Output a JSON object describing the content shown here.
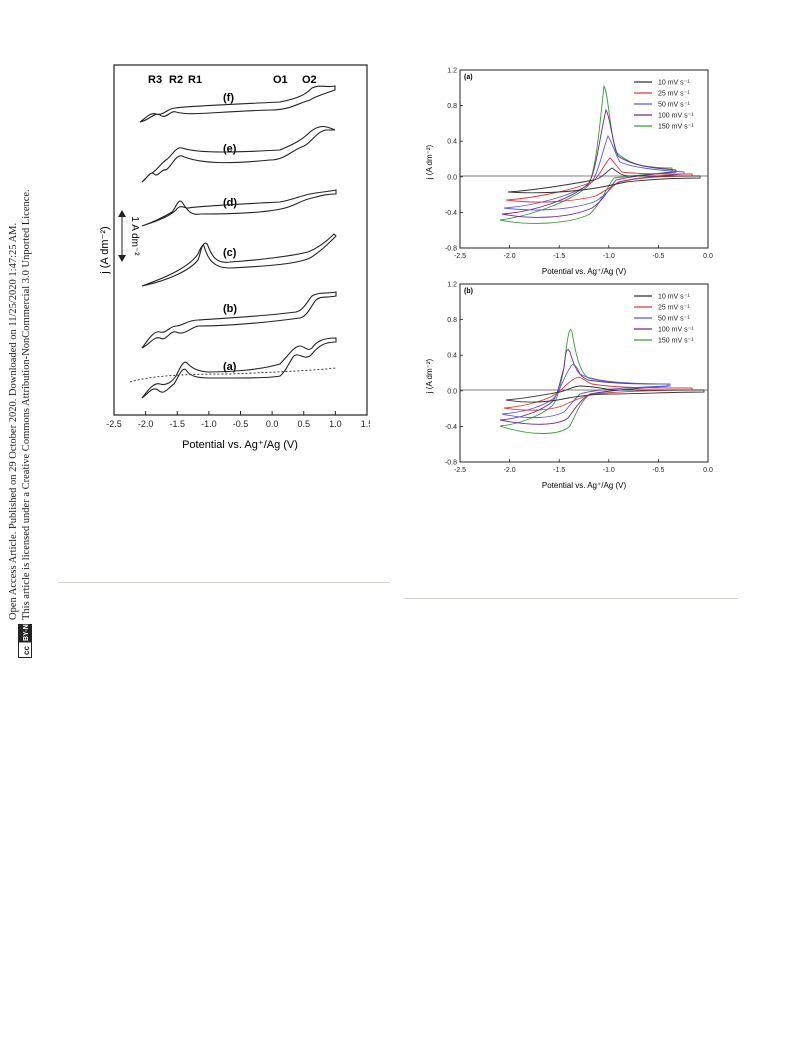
{
  "margin": {
    "line1": "Open Access Article. Published on 29 October 2020. Downloaded on 11/25/2020 1:47:25 AM.",
    "line2": "This article is licensed under a Creative Commons Attribution-NonCommercial 3.0 Unported Licence.",
    "badge_cc": "cc",
    "badge_type": "BY-NC"
  },
  "chart_data": [
    {
      "type": "line",
      "panel": "left",
      "xlabel": "Potential vs. Ag⁺/Ag (V)",
      "ylabel": "j (A dm⁻²)",
      "xlim": [
        -2.5,
        1.5
      ],
      "x_ticks": [
        "-2.5",
        "-2.0",
        "-1.5",
        "-1.0",
        "-0.5",
        "0.0",
        "0.5",
        "1.0",
        "1.5"
      ],
      "peak_labels": [
        "R3",
        "R2",
        "R1",
        "O1",
        "O2"
      ],
      "scale_bar": "1 A dm⁻²",
      "curve_labels": [
        "(f)",
        "(e)",
        "(d)",
        "(c)",
        "(b)",
        "(a)"
      ],
      "grid": false
    },
    {
      "type": "line",
      "panel": "(a)",
      "xlabel": "Potential vs. Ag⁺/Ag (V)",
      "ylabel": "j (A dm⁻²)",
      "xlim": [
        -2.5,
        0.0
      ],
      "ylim": [
        -0.8,
        1.2
      ],
      "x_ticks": [
        "-2.5",
        "-2.0",
        "-1.5",
        "-1.0",
        "-0.5",
        "0.0"
      ],
      "y_ticks": [
        "-0.8",
        "-0.4",
        "0.0",
        "0.4",
        "0.8",
        "1.2"
      ],
      "legend": "top-right",
      "series": [
        {
          "name": "10 mV s⁻¹",
          "color": "#333333"
        },
        {
          "name": "25 mV s⁻¹",
          "color": "#d43a3a"
        },
        {
          "name": "50 mV s⁻¹",
          "color": "#5a5adc"
        },
        {
          "name": "100 mV s⁻¹",
          "color": "#6a2a8e"
        },
        {
          "name": "150 mV s⁻¹",
          "color": "#3c9a3c"
        }
      ]
    },
    {
      "type": "line",
      "panel": "(b)",
      "xlabel": "Potential vs. Ag⁺/Ag (V)",
      "ylabel": "j (A dm⁻²)",
      "xlim": [
        -2.5,
        0.0
      ],
      "ylim": [
        -0.8,
        1.2
      ],
      "x_ticks": [
        "-2.5",
        "-2.0",
        "-1.5",
        "-1.0",
        "-0.5",
        "0.0"
      ],
      "y_ticks": [
        "-0.8",
        "-0.4",
        "0.0",
        "0.4",
        "0.8",
        "1.2"
      ],
      "legend": "top-right",
      "series": [
        {
          "name": "10 mV s⁻¹",
          "color": "#333333"
        },
        {
          "name": "25 mV s⁻¹",
          "color": "#d43a3a"
        },
        {
          "name": "50 mV s⁻¹",
          "color": "#5a5adc"
        },
        {
          "name": "100 mV s⁻¹",
          "color": "#6a2a8e"
        },
        {
          "name": "150 mV s⁻¹",
          "color": "#3c9a3c"
        }
      ]
    }
  ]
}
